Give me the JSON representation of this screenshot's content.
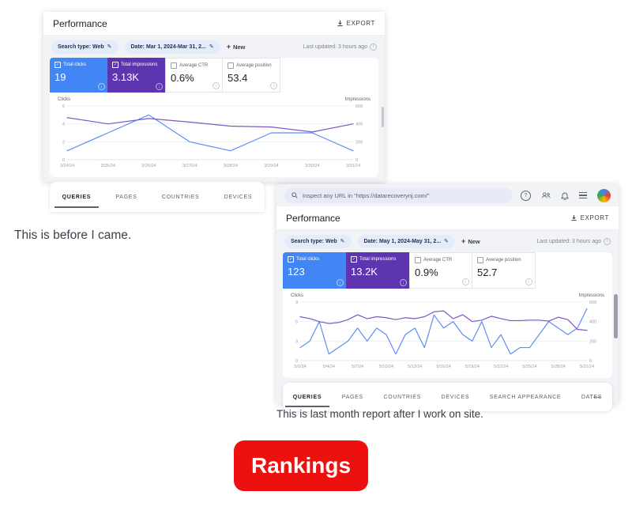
{
  "captions": {
    "before": "This is before I came.",
    "after": "This is last month report after I work on site."
  },
  "rankings_button": {
    "label": "Rankings",
    "color": "#ee0f0f"
  },
  "icons": {
    "pencil": "✎",
    "plus": "+",
    "info": "i",
    "help": "?",
    "dash": "—",
    "check": "✓"
  },
  "before": {
    "title": "Performance",
    "export_label": "EXPORT",
    "filters": {
      "search_type": "Search type: Web",
      "date": "Date: Mar 1, 2024-Mar 31, 2...",
      "new_label": "New"
    },
    "last_updated": "Last updated: 3 hours ago",
    "metrics": [
      {
        "label": "Total clicks",
        "value": "19",
        "selected": true,
        "color": "#4285f4"
      },
      {
        "label": "Total impressions",
        "value": "3.13K",
        "selected": true,
        "color": "#5e35b1"
      },
      {
        "label": "Average CTR",
        "value": "0.6%",
        "selected": false
      },
      {
        "label": "Average position",
        "value": "53.4",
        "selected": false
      }
    ],
    "tabs": {
      "t0": "QUERIES",
      "t1": "PAGES",
      "t2": "COUNTRIES",
      "t3": "DEVICES"
    },
    "active_tab": "QUERIES"
  },
  "after": {
    "topbar": {
      "search_placeholder": "Inspect any URL in \"https://datarecoverynj.com/\""
    },
    "title": "Performance",
    "export_label": "EXPORT",
    "filters": {
      "search_type": "Search type: Web",
      "date": "Date: May 1, 2024-May 31, 2...",
      "new_label": "New"
    },
    "last_updated": "Last updated: 3 hours ago",
    "metrics": [
      {
        "label": "Total clicks",
        "value": "123",
        "selected": true,
        "color": "#4285f4"
      },
      {
        "label": "Total impressions",
        "value": "13.2K",
        "selected": true,
        "color": "#5e35b1"
      },
      {
        "label": "Average CTR",
        "value": "0.9%",
        "selected": false
      },
      {
        "label": "Average position",
        "value": "52.7",
        "selected": false
      }
    ],
    "tabs": {
      "t0": "QUERIES",
      "t1": "PAGES",
      "t2": "COUNTRIES",
      "t3": "DEVICES",
      "t4": "SEARCH APPEARANCE",
      "t5": "DATES"
    },
    "active_tab": "QUERIES"
  },
  "chart_data": [
    {
      "type": "line",
      "title": "Performance Mar 1, 2024 - Mar 31, 2024 (visible range 3/24-3/31)",
      "x": [
        "3/24/24",
        "3/25/24",
        "3/26/24",
        "3/27/24",
        "3/28/24",
        "3/29/24",
        "3/30/24",
        "3/31/24"
      ],
      "x_label_step": 1,
      "left_axis": {
        "label": "Clicks",
        "ticks": [
          0,
          2,
          4,
          6
        ],
        "max": 6
      },
      "right_axis": {
        "label": "Impressions",
        "ticks": [
          0,
          200,
          400,
          600
        ],
        "max": 600
      },
      "grid": true,
      "legend_position": "none",
      "series": [
        {
          "name": "Clicks",
          "axis": "left",
          "color": "#5e8ef4",
          "values": [
            1,
            3,
            5,
            2,
            1,
            3,
            3,
            1
          ]
        },
        {
          "name": "Impressions",
          "axis": "right",
          "color": "#7e57c2",
          "values": [
            470,
            400,
            460,
            420,
            375,
            365,
            310,
            400
          ]
        }
      ]
    },
    {
      "type": "line",
      "title": "Performance May 1, 2024 - May 31, 2024",
      "x": [
        "5/1/24",
        "5/2/24",
        "5/3/24",
        "5/4/24",
        "5/5/24",
        "5/6/24",
        "5/7/24",
        "5/8/24",
        "5/9/24",
        "5/10/24",
        "5/11/24",
        "5/12/24",
        "5/13/24",
        "5/14/24",
        "5/15/24",
        "5/16/24",
        "5/17/24",
        "5/18/24",
        "5/19/24",
        "5/20/24",
        "5/21/24",
        "5/22/24",
        "5/23/24",
        "5/24/24",
        "5/25/24",
        "5/26/24",
        "5/27/24",
        "5/28/24",
        "5/29/24",
        "5/30/24",
        "5/31/24"
      ],
      "x_label_step": 3,
      "left_axis": {
        "label": "Clicks",
        "ticks": [
          0,
          3,
          6,
          9
        ],
        "max": 9
      },
      "right_axis": {
        "label": "Impressions",
        "ticks": [
          0,
          200,
          400,
          600
        ],
        "max": 600
      },
      "grid": true,
      "legend_position": "none",
      "series": [
        {
          "name": "Clicks",
          "axis": "left",
          "color": "#5e8ef4",
          "values": [
            2,
            3,
            6,
            1,
            2,
            3,
            5,
            3,
            5,
            4,
            1,
            4,
            5,
            2,
            7,
            5,
            6,
            4,
            3,
            6,
            2,
            4,
            1,
            2,
            2,
            4,
            6,
            5,
            4,
            5,
            8
          ]
        },
        {
          "name": "Impressions",
          "axis": "right",
          "color": "#7e57c2",
          "values": [
            450,
            430,
            400,
            380,
            390,
            420,
            470,
            430,
            450,
            440,
            420,
            440,
            430,
            450,
            500,
            510,
            430,
            470,
            400,
            415,
            455,
            430,
            410,
            410,
            415,
            415,
            405,
            445,
            420,
            320,
            310
          ]
        }
      ]
    }
  ]
}
